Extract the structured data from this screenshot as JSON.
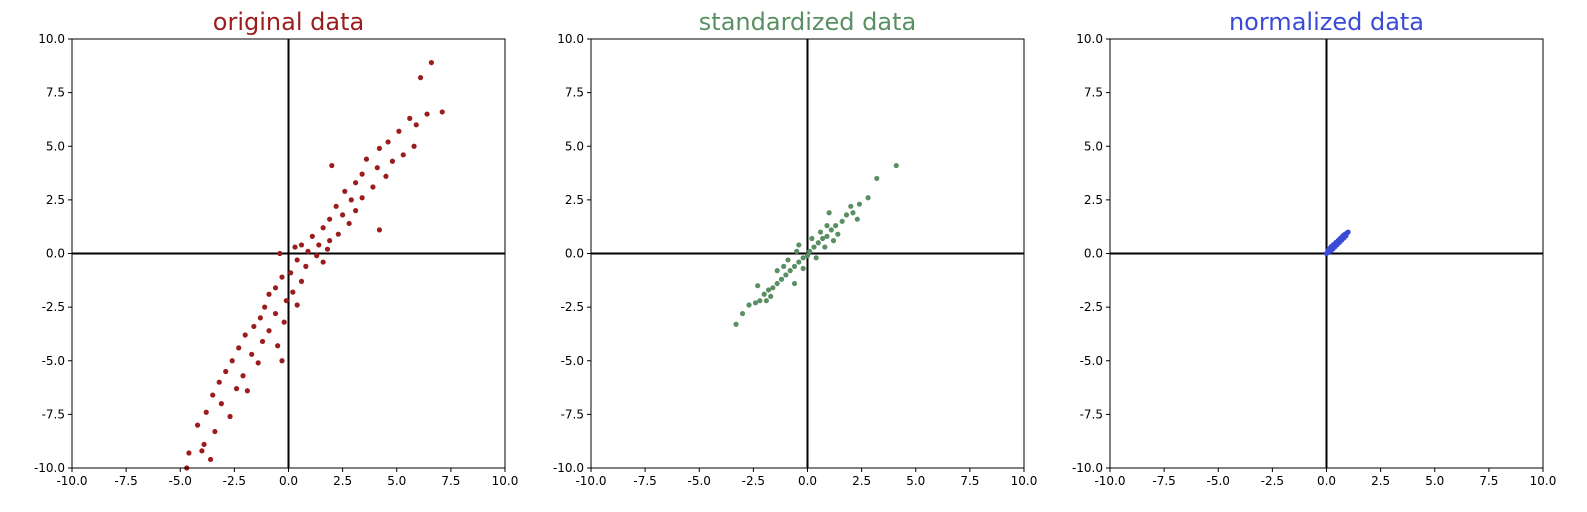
{
  "chart_data": [
    {
      "type": "scatter",
      "title": "original data",
      "title_color": "#9b1c1c",
      "point_color": "#9b1c1c",
      "xlim": [
        -10,
        10
      ],
      "ylim": [
        -10,
        10
      ],
      "xticks": [
        "-10.0",
        "-7.5",
        "-5.0",
        "-2.5",
        "0.0",
        "2.5",
        "5.0",
        "7.5",
        "10.0"
      ],
      "yticks": [
        "10.0",
        "7.5",
        "5.0",
        "2.5",
        "0.0",
        "-2.5",
        "-5.0",
        "-7.5",
        "-10.0"
      ],
      "grid": false,
      "axis_lines": "zero",
      "points": [
        [
          6.6,
          8.9
        ],
        [
          6.1,
          8.2
        ],
        [
          7.1,
          6.6
        ],
        [
          6.4,
          6.5
        ],
        [
          5.6,
          6.3
        ],
        [
          5.9,
          6.0
        ],
        [
          5.1,
          5.7
        ],
        [
          4.6,
          5.2
        ],
        [
          5.8,
          5.0
        ],
        [
          4.2,
          4.9
        ],
        [
          5.3,
          4.6
        ],
        [
          3.6,
          4.4
        ],
        [
          4.8,
          4.3
        ],
        [
          4.1,
          4.0
        ],
        [
          3.4,
          3.7
        ],
        [
          4.5,
          3.6
        ],
        [
          3.1,
          3.3
        ],
        [
          3.9,
          3.1
        ],
        [
          2.6,
          2.9
        ],
        [
          3.4,
          2.6
        ],
        [
          2.9,
          2.5
        ],
        [
          2.2,
          2.2
        ],
        [
          3.1,
          2.0
        ],
        [
          2.5,
          1.8
        ],
        [
          1.9,
          1.6
        ],
        [
          2.8,
          1.4
        ],
        [
          1.6,
          1.2
        ],
        [
          2.3,
          0.9
        ],
        [
          1.1,
          0.8
        ],
        [
          1.9,
          0.6
        ],
        [
          1.4,
          0.4
        ],
        [
          0.6,
          0.4
        ],
        [
          1.8,
          0.2
        ],
        [
          0.9,
          0.1
        ],
        [
          0.3,
          0.3
        ],
        [
          1.3,
          -0.1
        ],
        [
          0.4,
          -0.3
        ],
        [
          1.6,
          -0.4
        ],
        [
          -0.4,
          0.0
        ],
        [
          0.8,
          -0.6
        ],
        [
          0.1,
          -0.9
        ],
        [
          -0.3,
          -1.1
        ],
        [
          0.6,
          -1.3
        ],
        [
          -0.6,
          -1.6
        ],
        [
          0.2,
          -1.8
        ],
        [
          -0.9,
          -1.9
        ],
        [
          -0.1,
          -2.2
        ],
        [
          -1.1,
          -2.5
        ],
        [
          0.4,
          -2.4
        ],
        [
          -0.6,
          -2.8
        ],
        [
          -1.3,
          -3.0
        ],
        [
          -0.2,
          -3.2
        ],
        [
          -1.6,
          -3.4
        ],
        [
          -0.9,
          -3.6
        ],
        [
          -2.0,
          -3.8
        ],
        [
          -1.2,
          -4.1
        ],
        [
          -0.5,
          -4.3
        ],
        [
          -2.3,
          -4.4
        ],
        [
          -1.7,
          -4.7
        ],
        [
          -2.6,
          -5.0
        ],
        [
          -1.4,
          -5.1
        ],
        [
          -2.9,
          -5.5
        ],
        [
          -2.1,
          -5.7
        ],
        [
          -3.2,
          -6.0
        ],
        [
          -2.4,
          -6.3
        ],
        [
          -3.5,
          -6.6
        ],
        [
          -1.9,
          -6.4
        ],
        [
          -3.1,
          -7.0
        ],
        [
          -3.8,
          -7.4
        ],
        [
          -2.7,
          -7.6
        ],
        [
          -4.2,
          -8.0
        ],
        [
          -3.4,
          -8.3
        ],
        [
          -3.9,
          -8.9
        ],
        [
          -4.6,
          -9.3
        ],
        [
          -3.6,
          -9.6
        ],
        [
          -4.7,
          -10.0
        ],
        [
          -4.0,
          -9.2
        ],
        [
          -0.3,
          -5.0
        ],
        [
          4.2,
          1.1
        ],
        [
          2.0,
          4.1
        ]
      ]
    },
    {
      "type": "scatter",
      "title": "standardized data",
      "title_color": "#5a8f64",
      "point_color": "#5a8f64",
      "xlim": [
        -10,
        10
      ],
      "ylim": [
        -10,
        10
      ],
      "xticks": [
        "-10.0",
        "-7.5",
        "-5.0",
        "-2.5",
        "0.0",
        "2.5",
        "5.0",
        "7.5",
        "10.0"
      ],
      "yticks": [
        "10.0",
        "7.5",
        "5.0",
        "2.5",
        "0.0",
        "-2.5",
        "-5.0",
        "-7.5",
        "-10.0"
      ],
      "grid": false,
      "axis_lines": "zero",
      "points": [
        [
          4.1,
          4.1
        ],
        [
          3.2,
          3.5
        ],
        [
          2.8,
          2.6
        ],
        [
          2.4,
          2.3
        ],
        [
          2.1,
          1.9
        ],
        [
          1.8,
          1.8
        ],
        [
          1.6,
          1.5
        ],
        [
          1.3,
          1.3
        ],
        [
          1.1,
          1.1
        ],
        [
          0.9,
          0.8
        ],
        [
          0.7,
          0.7
        ],
        [
          0.5,
          0.5
        ],
        [
          0.3,
          0.3
        ],
        [
          0.1,
          0.1
        ],
        [
          0.0,
          -0.1
        ],
        [
          -0.2,
          -0.2
        ],
        [
          -0.4,
          -0.4
        ],
        [
          -0.6,
          -0.6
        ],
        [
          -0.8,
          -0.8
        ],
        [
          -1.0,
          -1.0
        ],
        [
          -1.2,
          -1.2
        ],
        [
          -1.4,
          -1.4
        ],
        [
          -1.6,
          -1.6
        ],
        [
          -1.8,
          -1.7
        ],
        [
          -2.0,
          -1.9
        ],
        [
          -2.2,
          -2.2
        ],
        [
          -2.4,
          -2.3
        ],
        [
          -2.7,
          -2.4
        ],
        [
          -3.0,
          -2.8
        ],
        [
          -3.3,
          -3.3
        ],
        [
          1.4,
          0.9
        ],
        [
          0.9,
          1.3
        ],
        [
          -0.5,
          0.1
        ],
        [
          0.4,
          -0.2
        ],
        [
          -1.1,
          -0.6
        ],
        [
          -0.6,
          -1.4
        ],
        [
          2.3,
          1.6
        ],
        [
          1.0,
          1.9
        ],
        [
          -1.9,
          -2.2
        ],
        [
          -1.4,
          -0.8
        ],
        [
          2.0,
          2.2
        ],
        [
          1.2,
          0.6
        ],
        [
          0.6,
          1.0
        ],
        [
          -0.2,
          -0.7
        ],
        [
          -0.9,
          -0.3
        ],
        [
          -2.3,
          -1.5
        ],
        [
          -1.7,
          -2.0
        ],
        [
          -0.4,
          0.4
        ],
        [
          0.2,
          0.7
        ],
        [
          0.8,
          0.3
        ]
      ]
    },
    {
      "type": "scatter",
      "title": "normalized data",
      "title_color": "#3a4bd6",
      "point_color": "#3a4bd6",
      "xlim": [
        -10,
        10
      ],
      "ylim": [
        -10,
        10
      ],
      "xticks": [
        "-10.0",
        "-7.5",
        "-5.0",
        "-2.5",
        "0.0",
        "2.5",
        "5.0",
        "7.5",
        "10.0"
      ],
      "yticks": [
        "10.0",
        "7.5",
        "5.0",
        "2.5",
        "0.0",
        "-2.5",
        "-5.0",
        "-7.5",
        "-10.0"
      ],
      "grid": false,
      "axis_lines": "zero",
      "points": [
        [
          0.0,
          0.0
        ],
        [
          0.05,
          0.06
        ],
        [
          0.1,
          0.1
        ],
        [
          0.15,
          0.14
        ],
        [
          0.2,
          0.2
        ],
        [
          0.25,
          0.24
        ],
        [
          0.3,
          0.3
        ],
        [
          0.35,
          0.34
        ],
        [
          0.4,
          0.4
        ],
        [
          0.45,
          0.46
        ],
        [
          0.5,
          0.5
        ],
        [
          0.55,
          0.56
        ],
        [
          0.6,
          0.6
        ],
        [
          0.65,
          0.66
        ],
        [
          0.7,
          0.7
        ],
        [
          0.75,
          0.76
        ],
        [
          0.8,
          0.8
        ],
        [
          0.85,
          0.86
        ],
        [
          0.9,
          0.9
        ],
        [
          0.95,
          0.96
        ],
        [
          1.0,
          1.0
        ],
        [
          0.12,
          0.2
        ],
        [
          0.22,
          0.32
        ],
        [
          0.33,
          0.42
        ],
        [
          0.44,
          0.52
        ],
        [
          0.55,
          0.62
        ],
        [
          0.65,
          0.72
        ],
        [
          0.75,
          0.82
        ],
        [
          0.85,
          0.9
        ],
        [
          0.2,
          0.12
        ],
        [
          0.3,
          0.22
        ],
        [
          0.4,
          0.32
        ],
        [
          0.5,
          0.42
        ],
        [
          0.6,
          0.52
        ],
        [
          0.7,
          0.62
        ],
        [
          0.8,
          0.72
        ],
        [
          0.9,
          0.82
        ],
        [
          0.08,
          0.15
        ],
        [
          0.18,
          0.26
        ],
        [
          0.28,
          0.36
        ]
      ]
    }
  ]
}
